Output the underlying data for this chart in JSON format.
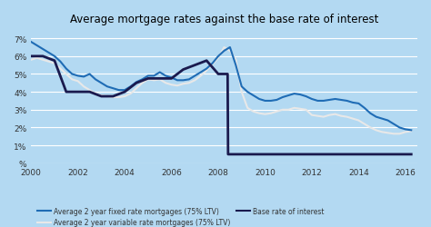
{
  "title": "Average mortgage rates against the base rate of interest",
  "background_color": "#b3d9f2",
  "plot_bg_color": "#b3d9f2",
  "ylabel": "%",
  "ylim": [
    0,
    7.5
  ],
  "yticks": [
    0,
    1,
    2,
    3,
    4,
    5,
    6,
    7
  ],
  "ytick_labels": [
    "%",
    "1%",
    "2%",
    "3%",
    "4%",
    "5%",
    "6%",
    "7%"
  ],
  "xlim": [
    2000,
    2016.5
  ],
  "xticks": [
    2000,
    2002,
    2004,
    2006,
    2008,
    2010,
    2012,
    2014,
    2016
  ],
  "fixed_rate": {
    "years": [
      2000.0,
      2000.25,
      2000.5,
      2000.75,
      2001.0,
      2001.25,
      2001.5,
      2001.75,
      2002.0,
      2002.25,
      2002.5,
      2002.75,
      2003.0,
      2003.25,
      2003.5,
      2003.75,
      2004.0,
      2004.25,
      2004.5,
      2004.75,
      2005.0,
      2005.25,
      2005.5,
      2005.75,
      2006.0,
      2006.25,
      2006.5,
      2006.75,
      2007.0,
      2007.25,
      2007.5,
      2007.75,
      2008.0,
      2008.25,
      2008.5,
      2008.75,
      2009.0,
      2009.25,
      2009.5,
      2009.75,
      2010.0,
      2010.25,
      2010.5,
      2010.75,
      2011.0,
      2011.25,
      2011.5,
      2011.75,
      2012.0,
      2012.25,
      2012.5,
      2012.75,
      2013.0,
      2013.25,
      2013.5,
      2013.75,
      2014.0,
      2014.25,
      2014.5,
      2014.75,
      2015.0,
      2015.25,
      2015.5,
      2015.75,
      2016.0,
      2016.25
    ],
    "values": [
      6.8,
      6.6,
      6.4,
      6.2,
      6.0,
      5.7,
      5.3,
      5.0,
      4.9,
      4.85,
      5.0,
      4.7,
      4.5,
      4.3,
      4.2,
      4.1,
      4.1,
      4.3,
      4.55,
      4.7,
      4.9,
      4.9,
      5.1,
      4.9,
      4.8,
      4.65,
      4.65,
      4.7,
      4.9,
      5.1,
      5.3,
      5.6,
      6.0,
      6.3,
      6.5,
      5.5,
      4.3,
      4.0,
      3.8,
      3.6,
      3.5,
      3.5,
      3.55,
      3.7,
      3.8,
      3.9,
      3.85,
      3.75,
      3.6,
      3.5,
      3.5,
      3.55,
      3.6,
      3.55,
      3.5,
      3.4,
      3.35,
      3.1,
      2.8,
      2.6,
      2.5,
      2.4,
      2.2,
      2.0,
      1.9,
      1.85
    ],
    "color": "#1f6cb5",
    "linewidth": 1.5
  },
  "variable_rate": {
    "years": [
      2000.0,
      2000.25,
      2000.5,
      2000.75,
      2001.0,
      2001.25,
      2001.5,
      2001.75,
      2002.0,
      2002.25,
      2002.5,
      2002.75,
      2003.0,
      2003.25,
      2003.5,
      2003.75,
      2004.0,
      2004.25,
      2004.5,
      2004.75,
      2005.0,
      2005.25,
      2005.5,
      2005.75,
      2006.0,
      2006.25,
      2006.5,
      2006.75,
      2007.0,
      2007.25,
      2007.5,
      2007.75,
      2008.0,
      2008.25,
      2008.5,
      2008.75,
      2009.0,
      2009.25,
      2009.5,
      2009.75,
      2010.0,
      2010.25,
      2010.5,
      2010.75,
      2011.0,
      2011.25,
      2011.5,
      2011.75,
      2012.0,
      2012.25,
      2012.5,
      2012.75,
      2013.0,
      2013.25,
      2013.5,
      2013.75,
      2014.0,
      2014.25,
      2014.5,
      2014.75,
      2015.0,
      2015.25,
      2015.5,
      2015.75,
      2016.0,
      2016.25
    ],
    "values": [
      5.8,
      5.9,
      5.8,
      5.7,
      5.6,
      5.3,
      5.0,
      4.7,
      4.6,
      4.3,
      4.1,
      3.9,
      3.8,
      3.75,
      3.7,
      3.7,
      3.75,
      3.9,
      4.2,
      4.5,
      4.7,
      4.65,
      4.7,
      4.5,
      4.4,
      4.35,
      4.45,
      4.5,
      4.65,
      4.9,
      5.2,
      5.55,
      5.9,
      6.5,
      6.3,
      5.8,
      4.0,
      3.1,
      2.9,
      2.8,
      2.75,
      2.8,
      2.9,
      3.0,
      3.0,
      3.1,
      3.05,
      3.0,
      2.7,
      2.65,
      2.6,
      2.7,
      2.75,
      2.65,
      2.6,
      2.5,
      2.4,
      2.2,
      2.0,
      1.85,
      1.75,
      1.7,
      1.65,
      1.65,
      1.75,
      1.8
    ],
    "color": "#e8e8e8",
    "linewidth": 1.5
  },
  "base_rate": {
    "years": [
      2000.0,
      2000.5,
      2001.0,
      2001.5,
      2002.0,
      2002.5,
      2003.0,
      2003.5,
      2004.0,
      2004.5,
      2005.0,
      2005.5,
      2006.0,
      2006.5,
      2007.0,
      2007.5,
      2008.0,
      2008.4,
      2008.42,
      2009.0,
      2016.25
    ],
    "values": [
      6.0,
      6.0,
      5.75,
      4.0,
      4.0,
      4.0,
      3.75,
      3.75,
      4.0,
      4.5,
      4.75,
      4.75,
      4.75,
      5.25,
      5.5,
      5.75,
      5.0,
      5.0,
      0.5,
      0.5,
      0.5
    ],
    "color": "#1a1a4e",
    "linewidth": 2.0
  },
  "legend": [
    {
      "label": "Average 2 year fixed rate mortgages (75% LTV)",
      "color": "#1f6cb5"
    },
    {
      "label": "Average 2 year variable rate mortgages (75% LTV)",
      "color": "#e8e8e8"
    },
    {
      "label": "Base rate of interest",
      "color": "#1a1a4e"
    }
  ]
}
